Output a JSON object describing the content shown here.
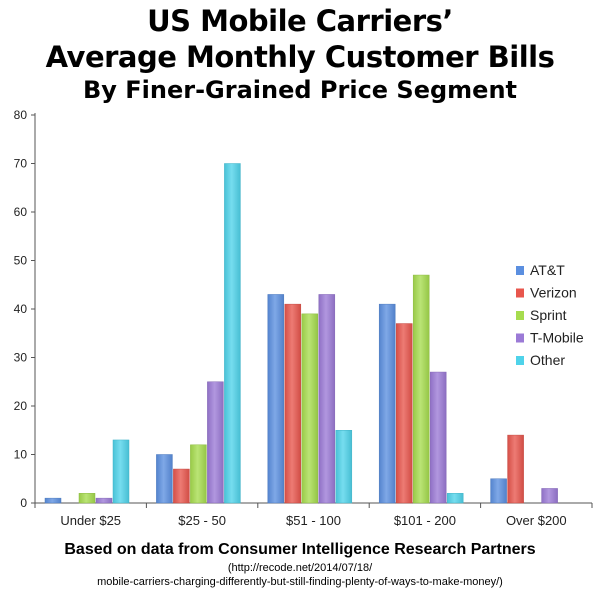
{
  "title_lines": [
    "US Mobile Carriers’",
    "Average Monthly Customer Bills",
    "By Finer-Grained Price Segment"
  ],
  "footer": {
    "source": "Based on data from Consumer Intelligence Research Partners",
    "url_line1": "(http://recode.net/2014/07/18/",
    "url_line2": "mobile-carriers-charging-differently-but-still-finding-plenty-of-ways-to-make-money/)"
  },
  "chart_data": {
    "type": "bar",
    "categories": [
      "Under $25",
      "$25 - 50",
      "$51 - 100",
      "$101 - 200",
      "Over $200"
    ],
    "series": [
      {
        "name": "AT&T",
        "color": "#5b8fe0",
        "values": [
          1,
          10,
          43,
          41,
          5
        ]
      },
      {
        "name": "Verizon",
        "color": "#e8564d",
        "values": [
          0,
          7,
          41,
          37,
          14
        ]
      },
      {
        "name": "Sprint",
        "color": "#a6dc4e",
        "values": [
          2,
          12,
          39,
          47,
          0
        ]
      },
      {
        "name": "T-Mobile",
        "color": "#9b7ad6",
        "values": [
          1,
          25,
          43,
          27,
          3
        ]
      },
      {
        "name": "Other",
        "color": "#4fd3ea",
        "values": [
          13,
          70,
          15,
          2,
          0
        ]
      }
    ],
    "ylim": [
      0,
      80
    ],
    "yticks": [
      0,
      10,
      20,
      30,
      40,
      50,
      60,
      70,
      80
    ],
    "grid": false,
    "legend_position": "right"
  }
}
